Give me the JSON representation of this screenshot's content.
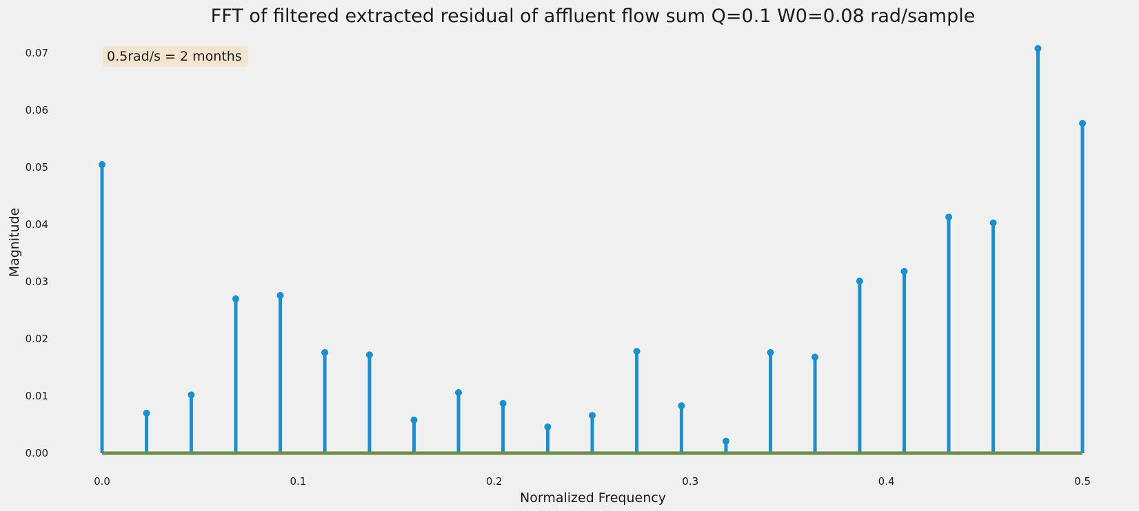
{
  "chart_data": {
    "type": "stem",
    "title": "FFT of filtered extracted residual of affluent flow sum Q=0.1 W0=0.08 rad/sample",
    "xlabel": "Normalized Frequency",
    "ylabel": "Magnitude",
    "xlim": [
      0.0,
      0.5
    ],
    "ylim": [
      0.0,
      0.07
    ],
    "xticks": [
      "0.0",
      "0.1",
      "0.2",
      "0.3",
      "0.4",
      "0.5"
    ],
    "yticks": [
      "0.00",
      "0.01",
      "0.02",
      "0.03",
      "0.04",
      "0.05",
      "0.06",
      "0.07"
    ],
    "grid": false,
    "annotation": "0.5rad/s = 2 months",
    "x": [
      0.0,
      0.0227,
      0.0455,
      0.0682,
      0.0909,
      0.1136,
      0.1364,
      0.1591,
      0.1818,
      0.2045,
      0.2273,
      0.25,
      0.2727,
      0.2955,
      0.3182,
      0.3409,
      0.3636,
      0.3864,
      0.4091,
      0.4318,
      0.4545,
      0.4773,
      0.5
    ],
    "values": [
      0.0505,
      0.007,
      0.0102,
      0.027,
      0.0276,
      0.0176,
      0.0172,
      0.0058,
      0.0106,
      0.0087,
      0.0046,
      0.0066,
      0.0178,
      0.0083,
      0.0021,
      0.0176,
      0.0168,
      0.0301,
      0.0318,
      0.0413,
      0.0403,
      0.0708,
      0.0577
    ],
    "colors": {
      "stem": "#1b8fcf",
      "baseline": "#6b8e4e",
      "background": "#f0f0f0",
      "annotation_box": "#f2e4cf"
    }
  }
}
